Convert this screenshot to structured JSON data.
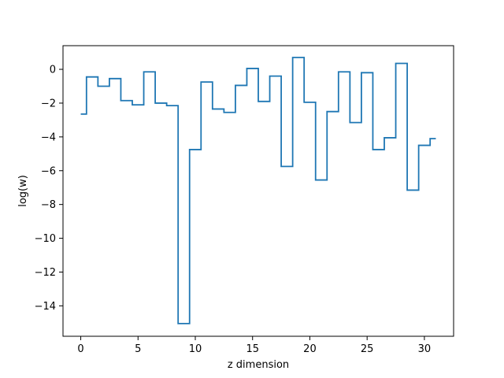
{
  "chart_data": {
    "type": "line",
    "drawstyle": "steps-mid",
    "title": "",
    "xlabel": "z dimension",
    "ylabel": "log(w)",
    "xlim": [
      -1.55,
      32.55
    ],
    "ylim": [
      -15.8,
      1.4
    ],
    "grid": false,
    "legend": "none",
    "x_ticks": [
      0,
      5,
      10,
      15,
      20,
      25,
      30
    ],
    "x_tick_labels": [
      "0",
      "5",
      "10",
      "15",
      "20",
      "25",
      "30"
    ],
    "y_ticks": [
      0,
      -2,
      -4,
      -6,
      -8,
      -10,
      -12,
      -14
    ],
    "y_tick_labels": [
      "0",
      "−2",
      "−4",
      "−6",
      "−8",
      "−10",
      "−12",
      "−14"
    ],
    "series": [
      {
        "color": "#1f77b4",
        "x": [
          0,
          1,
          2,
          3,
          4,
          5,
          6,
          7,
          8,
          9,
          10,
          11,
          12,
          13,
          14,
          15,
          16,
          17,
          18,
          19,
          20,
          21,
          22,
          23,
          24,
          25,
          26,
          27,
          28,
          29,
          30,
          31
        ],
        "y": [
          -2.65,
          -0.45,
          -1.0,
          -0.55,
          -1.85,
          -2.1,
          -0.15,
          -2.0,
          -2.15,
          -15.05,
          -4.75,
          -0.75,
          -2.35,
          -2.55,
          -0.95,
          0.05,
          -1.9,
          -0.4,
          -5.75,
          0.7,
          -1.95,
          -6.55,
          -2.5,
          -0.15,
          -3.15,
          -0.2,
          -4.75,
          -4.05,
          0.35,
          -7.15,
          -4.5,
          -4.1
        ]
      }
    ]
  }
}
